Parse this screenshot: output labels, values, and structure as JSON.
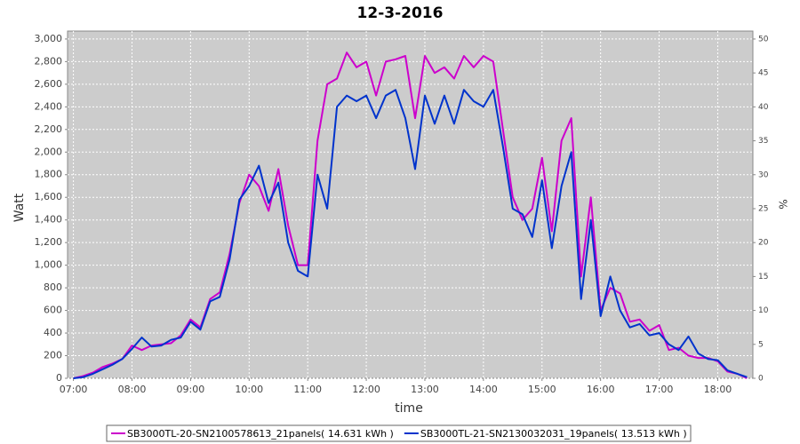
{
  "chart_data": {
    "type": "line",
    "title": "12-3-2016",
    "x_label": "time",
    "y_label": "Watt",
    "y2_label": "%",
    "x": [
      "07:00",
      "07:10",
      "07:20",
      "07:30",
      "07:40",
      "07:50",
      "08:00",
      "08:10",
      "08:20",
      "08:30",
      "08:40",
      "08:50",
      "09:00",
      "09:10",
      "09:20",
      "09:30",
      "09:40",
      "09:50",
      "10:00",
      "10:10",
      "10:20",
      "10:30",
      "10:40",
      "10:50",
      "11:00",
      "11:10",
      "11:20",
      "11:30",
      "11:40",
      "11:50",
      "12:00",
      "12:10",
      "12:20",
      "12:30",
      "12:40",
      "12:50",
      "13:00",
      "13:10",
      "13:20",
      "13:30",
      "13:40",
      "13:50",
      "14:00",
      "14:10",
      "14:20",
      "14:30",
      "14:40",
      "14:50",
      "15:00",
      "15:10",
      "15:20",
      "15:30",
      "15:40",
      "15:50",
      "16:00",
      "16:10",
      "16:20",
      "16:30",
      "16:40",
      "16:50",
      "17:00",
      "17:10",
      "17:20",
      "17:30",
      "17:40",
      "17:50",
      "18:00",
      "18:10",
      "18:20",
      "18:30"
    ],
    "series": [
      {
        "name": "SB3000TL-20-SN2100578613_21panels( 14.631 kWh )",
        "color": "#cc00cc",
        "values": [
          0,
          20,
          50,
          100,
          130,
          170,
          290,
          250,
          290,
          300,
          310,
          380,
          520,
          450,
          700,
          760,
          1100,
          1550,
          1800,
          1700,
          1480,
          1850,
          1350,
          1000,
          1000,
          2100,
          2600,
          2650,
          2880,
          2750,
          2800,
          2500,
          2800,
          2820,
          2850,
          2300,
          2850,
          2700,
          2750,
          2650,
          2850,
          2750,
          2850,
          2800,
          2200,
          1600,
          1400,
          1500,
          1950,
          1300,
          2100,
          2300,
          900,
          1600,
          600,
          800,
          750,
          500,
          520,
          420,
          470,
          250,
          270,
          200,
          180,
          180,
          150,
          60,
          40,
          0
        ]
      },
      {
        "name": "SB3000TL-21-SN2130032031_19panels( 13.513 kWh )",
        "color": "#0033cc",
        "values": [
          0,
          10,
          40,
          80,
          120,
          170,
          260,
          360,
          280,
          290,
          340,
          360,
          500,
          430,
          680,
          720,
          1050,
          1580,
          1700,
          1880,
          1550,
          1730,
          1200,
          950,
          900,
          1800,
          1500,
          2400,
          2500,
          2450,
          2500,
          2300,
          2500,
          2550,
          2300,
          1850,
          2500,
          2250,
          2500,
          2250,
          2550,
          2450,
          2400,
          2550,
          2050,
          1500,
          1450,
          1250,
          1750,
          1150,
          1700,
          2000,
          700,
          1400,
          550,
          900,
          600,
          450,
          480,
          380,
          400,
          300,
          250,
          370,
          220,
          170,
          160,
          70,
          40,
          10
        ]
      }
    ],
    "xlim": [
      "06:54",
      "18:36"
    ],
    "xticks": [
      "07:00",
      "08:00",
      "09:00",
      "10:00",
      "11:00",
      "12:00",
      "13:00",
      "14:00",
      "15:00",
      "16:00",
      "17:00",
      "18:00"
    ],
    "ylim": [
      0,
      3070
    ],
    "yticks": [
      0,
      200,
      400,
      600,
      800,
      {
        "value": 1000,
        "label": "1,000"
      },
      {
        "value": 1200,
        "label": "1,200"
      },
      {
        "value": 1400,
        "label": "1,400"
      },
      {
        "value": 1600,
        "label": "1,600"
      },
      {
        "value": 1800,
        "label": "1,800"
      },
      {
        "value": 2000,
        "label": "2,000"
      },
      {
        "value": 2200,
        "label": "2,200"
      },
      {
        "value": 2400,
        "label": "2,400"
      },
      {
        "value": 2600,
        "label": "2,600"
      },
      {
        "value": 2800,
        "label": "2,800"
      },
      {
        "value": 3000,
        "label": "3,000"
      }
    ],
    "y2lim": [
      0,
      51.17
    ],
    "y2ticks": [
      0,
      5,
      10,
      15,
      20,
      25,
      30,
      35,
      40,
      45,
      50
    ],
    "grid": true,
    "legend": "bottom",
    "plot_background": "#cccccc"
  }
}
